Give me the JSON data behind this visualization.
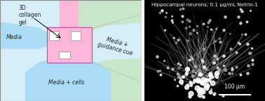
{
  "fig_width": 3.78,
  "fig_height": 1.45,
  "dpi": 100,
  "left_panel": {
    "bg_color": "#d6eef7",
    "border_color": "#888888",
    "gel_color": "#c8e6c9",
    "media_color": "#aaddf5",
    "media_plus_cells_color": "#aaddf5",
    "channel_color": "#ffb6d9",
    "pink_rect_color": "#ffb6d9",
    "pink_rect_border": "#cc44aa",
    "text_media": "Media",
    "text_media_cells": "Media + cells",
    "text_media_guidance": "Media +\nguidance cue",
    "text_gel": "3D\ncollagen\ngel",
    "label_fontsize": 5.5,
    "italic": true
  },
  "right_panel": {
    "bg_color": "#000000",
    "title": "Hippocampal neurons; 0.1 μg/mL Netrin-1",
    "title_fontsize": 5.2,
    "title_color": "#ffffff",
    "scalebar_text": "100 μm",
    "scalebar_color": "#ffffff",
    "scalebar_fontsize": 5.5
  }
}
